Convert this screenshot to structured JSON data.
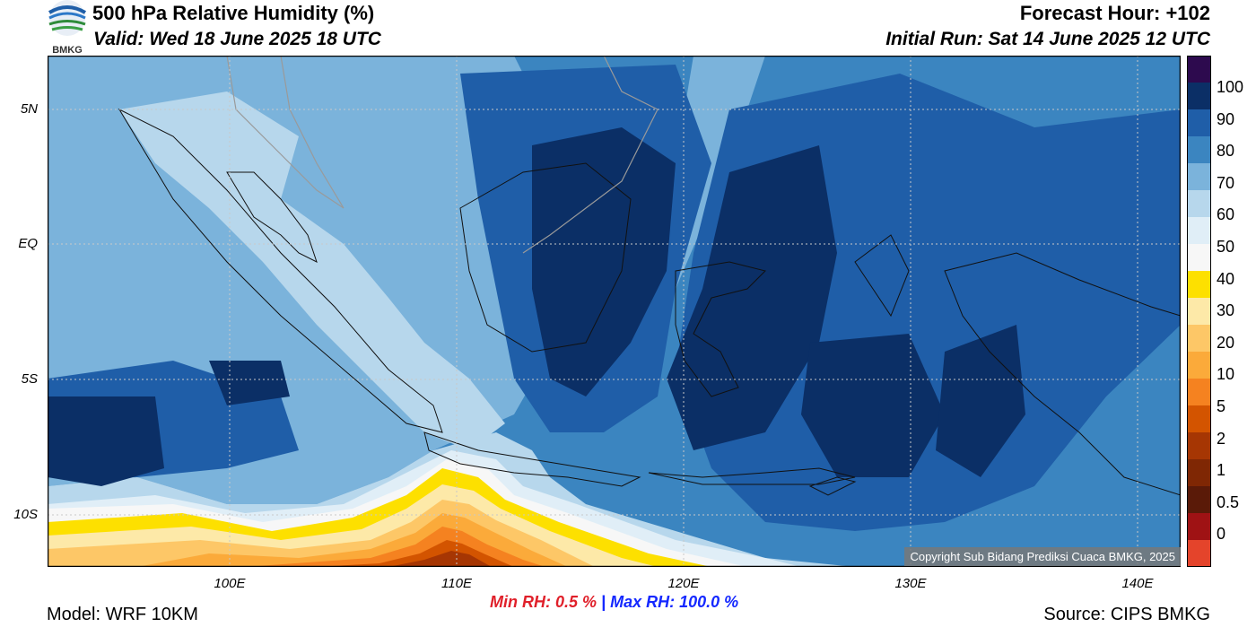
{
  "header": {
    "title": "500 hPa Relative Humidity (%)",
    "valid": "Valid: Wed 18 June 2025 18 UTC",
    "forecast_hour": "Forecast Hour: +102",
    "initial_run": "Initial Run: Sat 14 June 2025 12 UTC",
    "logo_text": "BMKG"
  },
  "axes": {
    "lat_labels": [
      "5N",
      "EQ",
      "5S",
      "10S"
    ],
    "lon_labels": [
      "100E",
      "110E",
      "120E",
      "130E",
      "140E"
    ]
  },
  "colorbar": {
    "labels": [
      "100",
      "90",
      "80",
      "70",
      "60",
      "50",
      "40",
      "30",
      "20",
      "10",
      "5",
      "2",
      "1",
      "0.5",
      "0"
    ],
    "colors": [
      "#2d0a4e",
      "#0b2f66",
      "#1f5ea8",
      "#3b85c0",
      "#7bb3db",
      "#b7d7ec",
      "#e0eef7",
      "#f7f7f7",
      "#fde000",
      "#fde9a8",
      "#fdc767",
      "#fbaa3a",
      "#f58220",
      "#d35400",
      "#a63603",
      "#7f2704",
      "#5a1a08",
      "#9f1214",
      "#e4442b"
    ]
  },
  "stats": {
    "min_label": "Min RH:",
    "min_value": "0.5 %",
    "separator": "|",
    "max_label": "Max RH:",
    "max_value": "100.0 %"
  },
  "footer": {
    "model": "Model: WRF 10KM",
    "source": "Source: CIPS BMKG",
    "copyright": "Copyright Sub Bidang Prediksi Cuaca BMKG, 2025"
  }
}
